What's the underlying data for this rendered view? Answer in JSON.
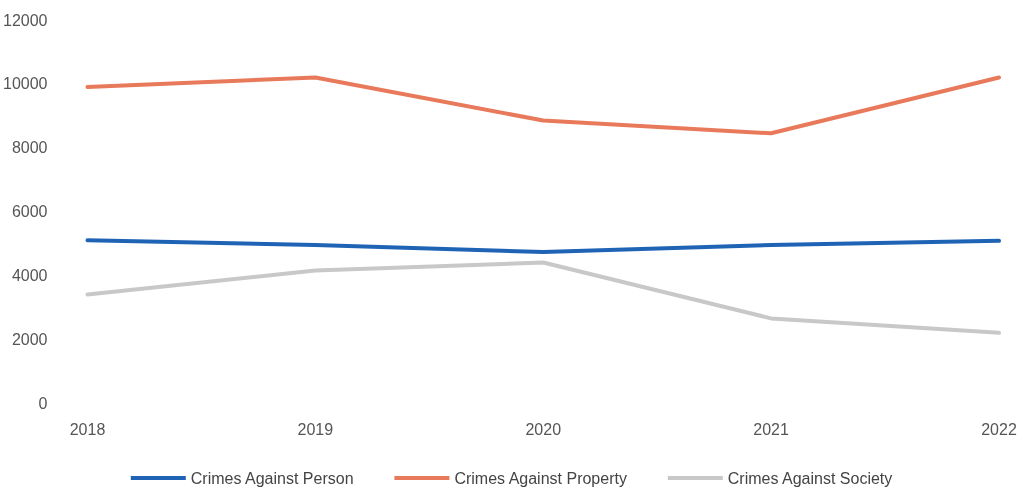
{
  "chart_data": {
    "type": "line",
    "categories": [
      "2018",
      "2019",
      "2020",
      "2021",
      "2022"
    ],
    "series": [
      {
        "name": "Crimes Against Person",
        "color": "#1f63b5",
        "values": [
          5100,
          4950,
          4730,
          4950,
          5080
        ]
      },
      {
        "name": "Crimes Against Property",
        "color": "#e8795a",
        "values": [
          9900,
          10200,
          8850,
          8450,
          10200
        ]
      },
      {
        "name": "Crimes Against Society",
        "color": "#c8c8c8",
        "values": [
          3400,
          4150,
          4400,
          2650,
          2200
        ]
      }
    ],
    "ylim": [
      0,
      12000
    ],
    "yticks": [
      0,
      2000,
      4000,
      6000,
      8000,
      10000,
      12000
    ],
    "grid": false,
    "legend": "bottom",
    "marker": "none",
    "line_style": "solid"
  }
}
